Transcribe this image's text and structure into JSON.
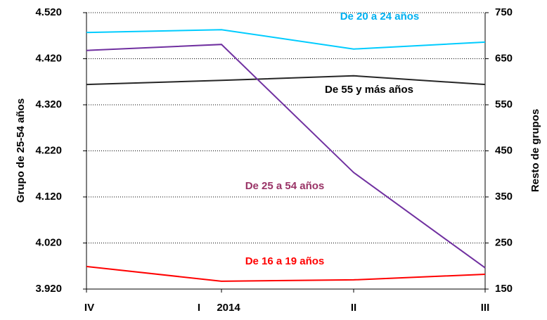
{
  "chart_data": {
    "type": "line",
    "categories": [
      "IV",
      "I",
      "II",
      "III"
    ],
    "annotations": [
      "2014"
    ],
    "ylabel": "Grupo de 25-54 años",
    "y2label": "Resto de grupos",
    "ylim": [
      3920,
      4520
    ],
    "yticks": [
      {
        "value": 3920,
        "label": "3.920"
      },
      {
        "value": 4020,
        "label": "4.020"
      },
      {
        "value": 4120,
        "label": "4.120"
      },
      {
        "value": 4220,
        "label": "4.220"
      },
      {
        "value": 4320,
        "label": "4.320"
      },
      {
        "value": 4420,
        "label": "4.420"
      },
      {
        "value": 4520,
        "label": "4.520"
      }
    ],
    "y2lim": [
      150,
      750
    ],
    "y2ticks": [
      150,
      250,
      350,
      450,
      550,
      650,
      750
    ],
    "grid": true,
    "series": [
      {
        "name": "De 20 a 24 años",
        "color": "#00ccff",
        "label_color": "#00b0f0",
        "axis": "y2",
        "values": [
          707,
          713,
          671,
          686
        ]
      },
      {
        "name": "De 55 y más años",
        "color": "#262626",
        "label_color": "#000000",
        "axis": "y2",
        "values": [
          594,
          603,
          613,
          594
        ]
      },
      {
        "name": "De 25 a 54 años",
        "color": "#7030a0",
        "label_color": "#993366",
        "values": [
          4438,
          4451,
          4173,
          3966
        ]
      },
      {
        "name": "De 16 a 19 años",
        "color": "#ff0000",
        "label_color": "#ff0000",
        "axis": "y2",
        "values": [
          199,
          167,
          170,
          182
        ]
      }
    ]
  }
}
